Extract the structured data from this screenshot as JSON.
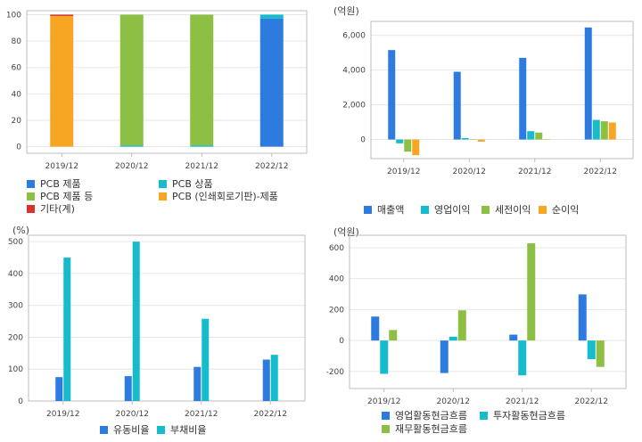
{
  "colors": {
    "blue": "#2e7be0",
    "cyan": "#16bccb",
    "green": "#8ebf45",
    "orange": "#f6a623",
    "red": "#d9312b",
    "frame": "#bdbdbd",
    "grid": "#e6e6e6"
  },
  "chart_data": [
    {
      "type": "bar",
      "stacked": true,
      "unit": "",
      "categories": [
        "2019/12",
        "2020/12",
        "2021/12",
        "2022/12"
      ],
      "ylim": [
        -5,
        103
      ],
      "yticks": [
        "0",
        "20",
        "40",
        "60",
        "80",
        "100"
      ],
      "grid": true,
      "legend_position": "bottom",
      "series": [
        {
          "name": "PCB 제품",
          "color": "#2e7be0",
          "values": [
            0,
            0,
            0,
            97
          ]
        },
        {
          "name": "PCB 상품",
          "color": "#16bccb",
          "values": [
            0,
            1,
            1,
            3
          ]
        },
        {
          "name": "PCB 제품 등",
          "color": "#8ebf45",
          "values": [
            0,
            99,
            99,
            0
          ]
        },
        {
          "name": "PCB  (인쇄회로기판)-제품",
          "color": "#f6a623",
          "values": [
            99,
            0,
            0,
            0
          ]
        },
        {
          "name": "기타(계)",
          "color": "#d9312b",
          "values": [
            1,
            0,
            0,
            0
          ]
        }
      ]
    },
    {
      "type": "bar",
      "unit": "(억원)",
      "categories": [
        "2019/12",
        "2020/12",
        "2021/12",
        "2022/12"
      ],
      "ylim": [
        -1100,
        6800
      ],
      "yticks": [
        "0",
        "2,000",
        "4,000",
        "6,000"
      ],
      "grid": true,
      "legend_position": "bottom",
      "series": [
        {
          "name": "매출액",
          "color": "#2e7be0",
          "values": [
            5150,
            3900,
            4700,
            6450
          ]
        },
        {
          "name": "영업이익",
          "color": "#16bccb",
          "values": [
            -220,
            80,
            480,
            1130
          ]
        },
        {
          "name": "세전이익",
          "color": "#8ebf45",
          "values": [
            -700,
            20,
            400,
            1050
          ]
        },
        {
          "name": "순이익",
          "color": "#f6a623",
          "values": [
            -900,
            -120,
            -20,
            980
          ]
        }
      ]
    },
    {
      "type": "bar",
      "unit": "(%)",
      "categories": [
        "2019/12",
        "2020/12",
        "2021/12",
        "2022/12"
      ],
      "ylim": [
        0,
        520
      ],
      "yticks": [
        "0",
        "100",
        "200",
        "300",
        "400",
        "500"
      ],
      "grid": true,
      "legend_position": "bottom",
      "series": [
        {
          "name": "유동비율",
          "color": "#2e7be0",
          "values": [
            75,
            78,
            107,
            130
          ]
        },
        {
          "name": "부채비율",
          "color": "#16bccb",
          "values": [
            450,
            500,
            258,
            145
          ]
        }
      ]
    },
    {
      "type": "bar",
      "unit": "(억원)",
      "categories": [
        "2019/12",
        "2020/12",
        "2021/12",
        "2022/12"
      ],
      "ylim": [
        -310,
        680
      ],
      "yticks": [
        "-200",
        "0",
        "200",
        "400",
        "600"
      ],
      "grid": true,
      "legend_position": "bottom",
      "series": [
        {
          "name": "영업활동현금흐름",
          "color": "#2e7be0",
          "values": [
            155,
            -210,
            38,
            298
          ]
        },
        {
          "name": "투자활동현금흐름",
          "color": "#16bccb",
          "values": [
            -215,
            25,
            -225,
            -120
          ]
        },
        {
          "name": "재무활동현금흐름",
          "color": "#8ebf45",
          "values": [
            68,
            195,
            628,
            -170
          ]
        }
      ]
    }
  ]
}
